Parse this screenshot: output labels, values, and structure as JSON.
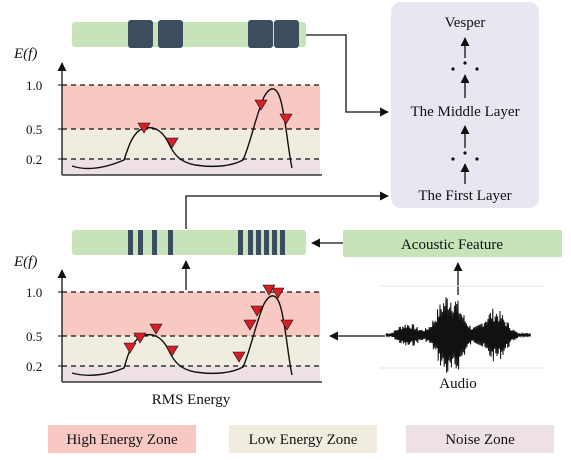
{
  "top_plot": {
    "y_axis_label": "E(f)",
    "y_ticks": [
      "1.0",
      "0.5",
      "0.2"
    ]
  },
  "bottom_plot": {
    "y_axis_label": "E(f)",
    "y_ticks": [
      "1.0",
      "0.5",
      "0.2"
    ],
    "x_axis_label": "RMS Energy"
  },
  "model_box": {
    "top_label": "Vesper",
    "middle_label": "The Middle Layer",
    "bottom_label": "The First Layer"
  },
  "acoustic_feature_label": "Acoustic Feature",
  "audio_label": "Audio",
  "legend": {
    "high": "High Energy Zone",
    "low": "Low Energy Zone",
    "noise": "Noise Zone"
  },
  "colors": {
    "high_zone": "#f8c9c3",
    "low_zone": "#f1ece0",
    "noise_zone": "#ede0e6",
    "feature_bar": "#c7e3b9",
    "mask_block": "#3e4c5f",
    "model_box": "#e7e6f1",
    "marker": "#d61f26"
  }
}
